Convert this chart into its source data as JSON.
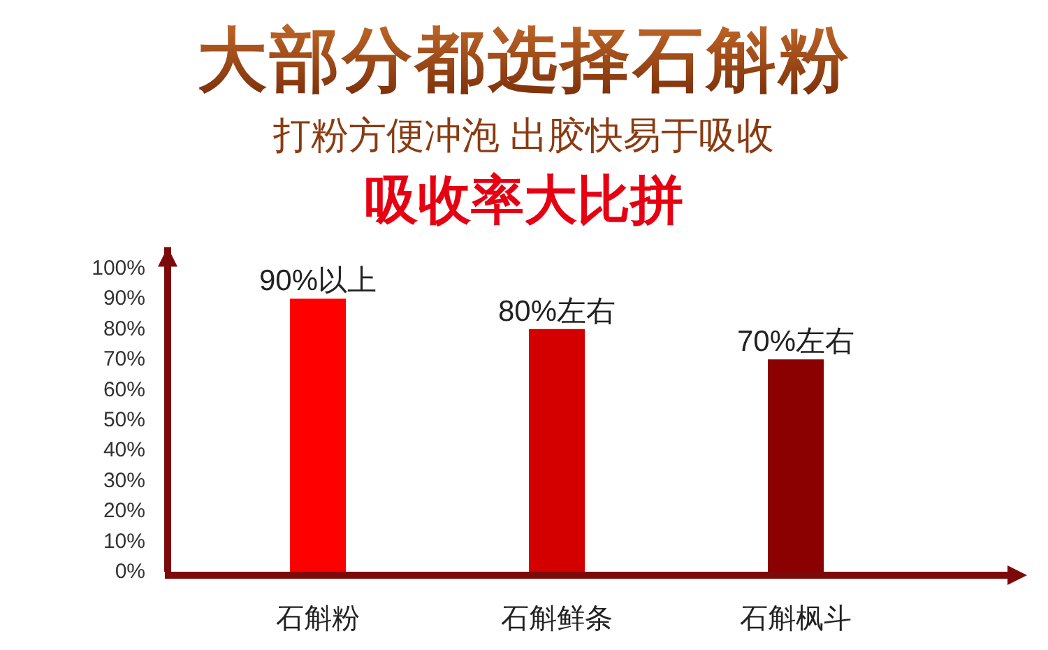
{
  "chart_data": {
    "type": "bar",
    "title": "大部分都选择石斛粉",
    "subtitle": "打粉方便冲泡 出胶快易于吸收",
    "annotations": [
      "吸收率大比拼"
    ],
    "categories": [
      "石斛粉",
      "石斛鲜条",
      "石斛枫斗"
    ],
    "values": [
      90,
      80,
      70
    ],
    "colors": [
      "#ff0000",
      "#d40000",
      "#8b0000"
    ],
    "value_labels": [
      "90%以上",
      "80%左右",
      "70%左右"
    ],
    "ylim": [
      0,
      107
    ],
    "yticks": [
      {
        "value": 0,
        "label": "0%"
      },
      {
        "value": 10,
        "label": "10%"
      },
      {
        "value": 20,
        "label": "20%"
      },
      {
        "value": 30,
        "label": "30%"
      },
      {
        "value": 40,
        "label": "40%"
      },
      {
        "value": 50,
        "label": "50%"
      },
      {
        "value": 60,
        "label": "60%"
      },
      {
        "value": 70,
        "label": "70%"
      },
      {
        "value": 80,
        "label": "80%"
      },
      {
        "value": 90,
        "label": "90%"
      },
      {
        "value": 100,
        "label": "100%"
      }
    ],
    "grid": false
  }
}
